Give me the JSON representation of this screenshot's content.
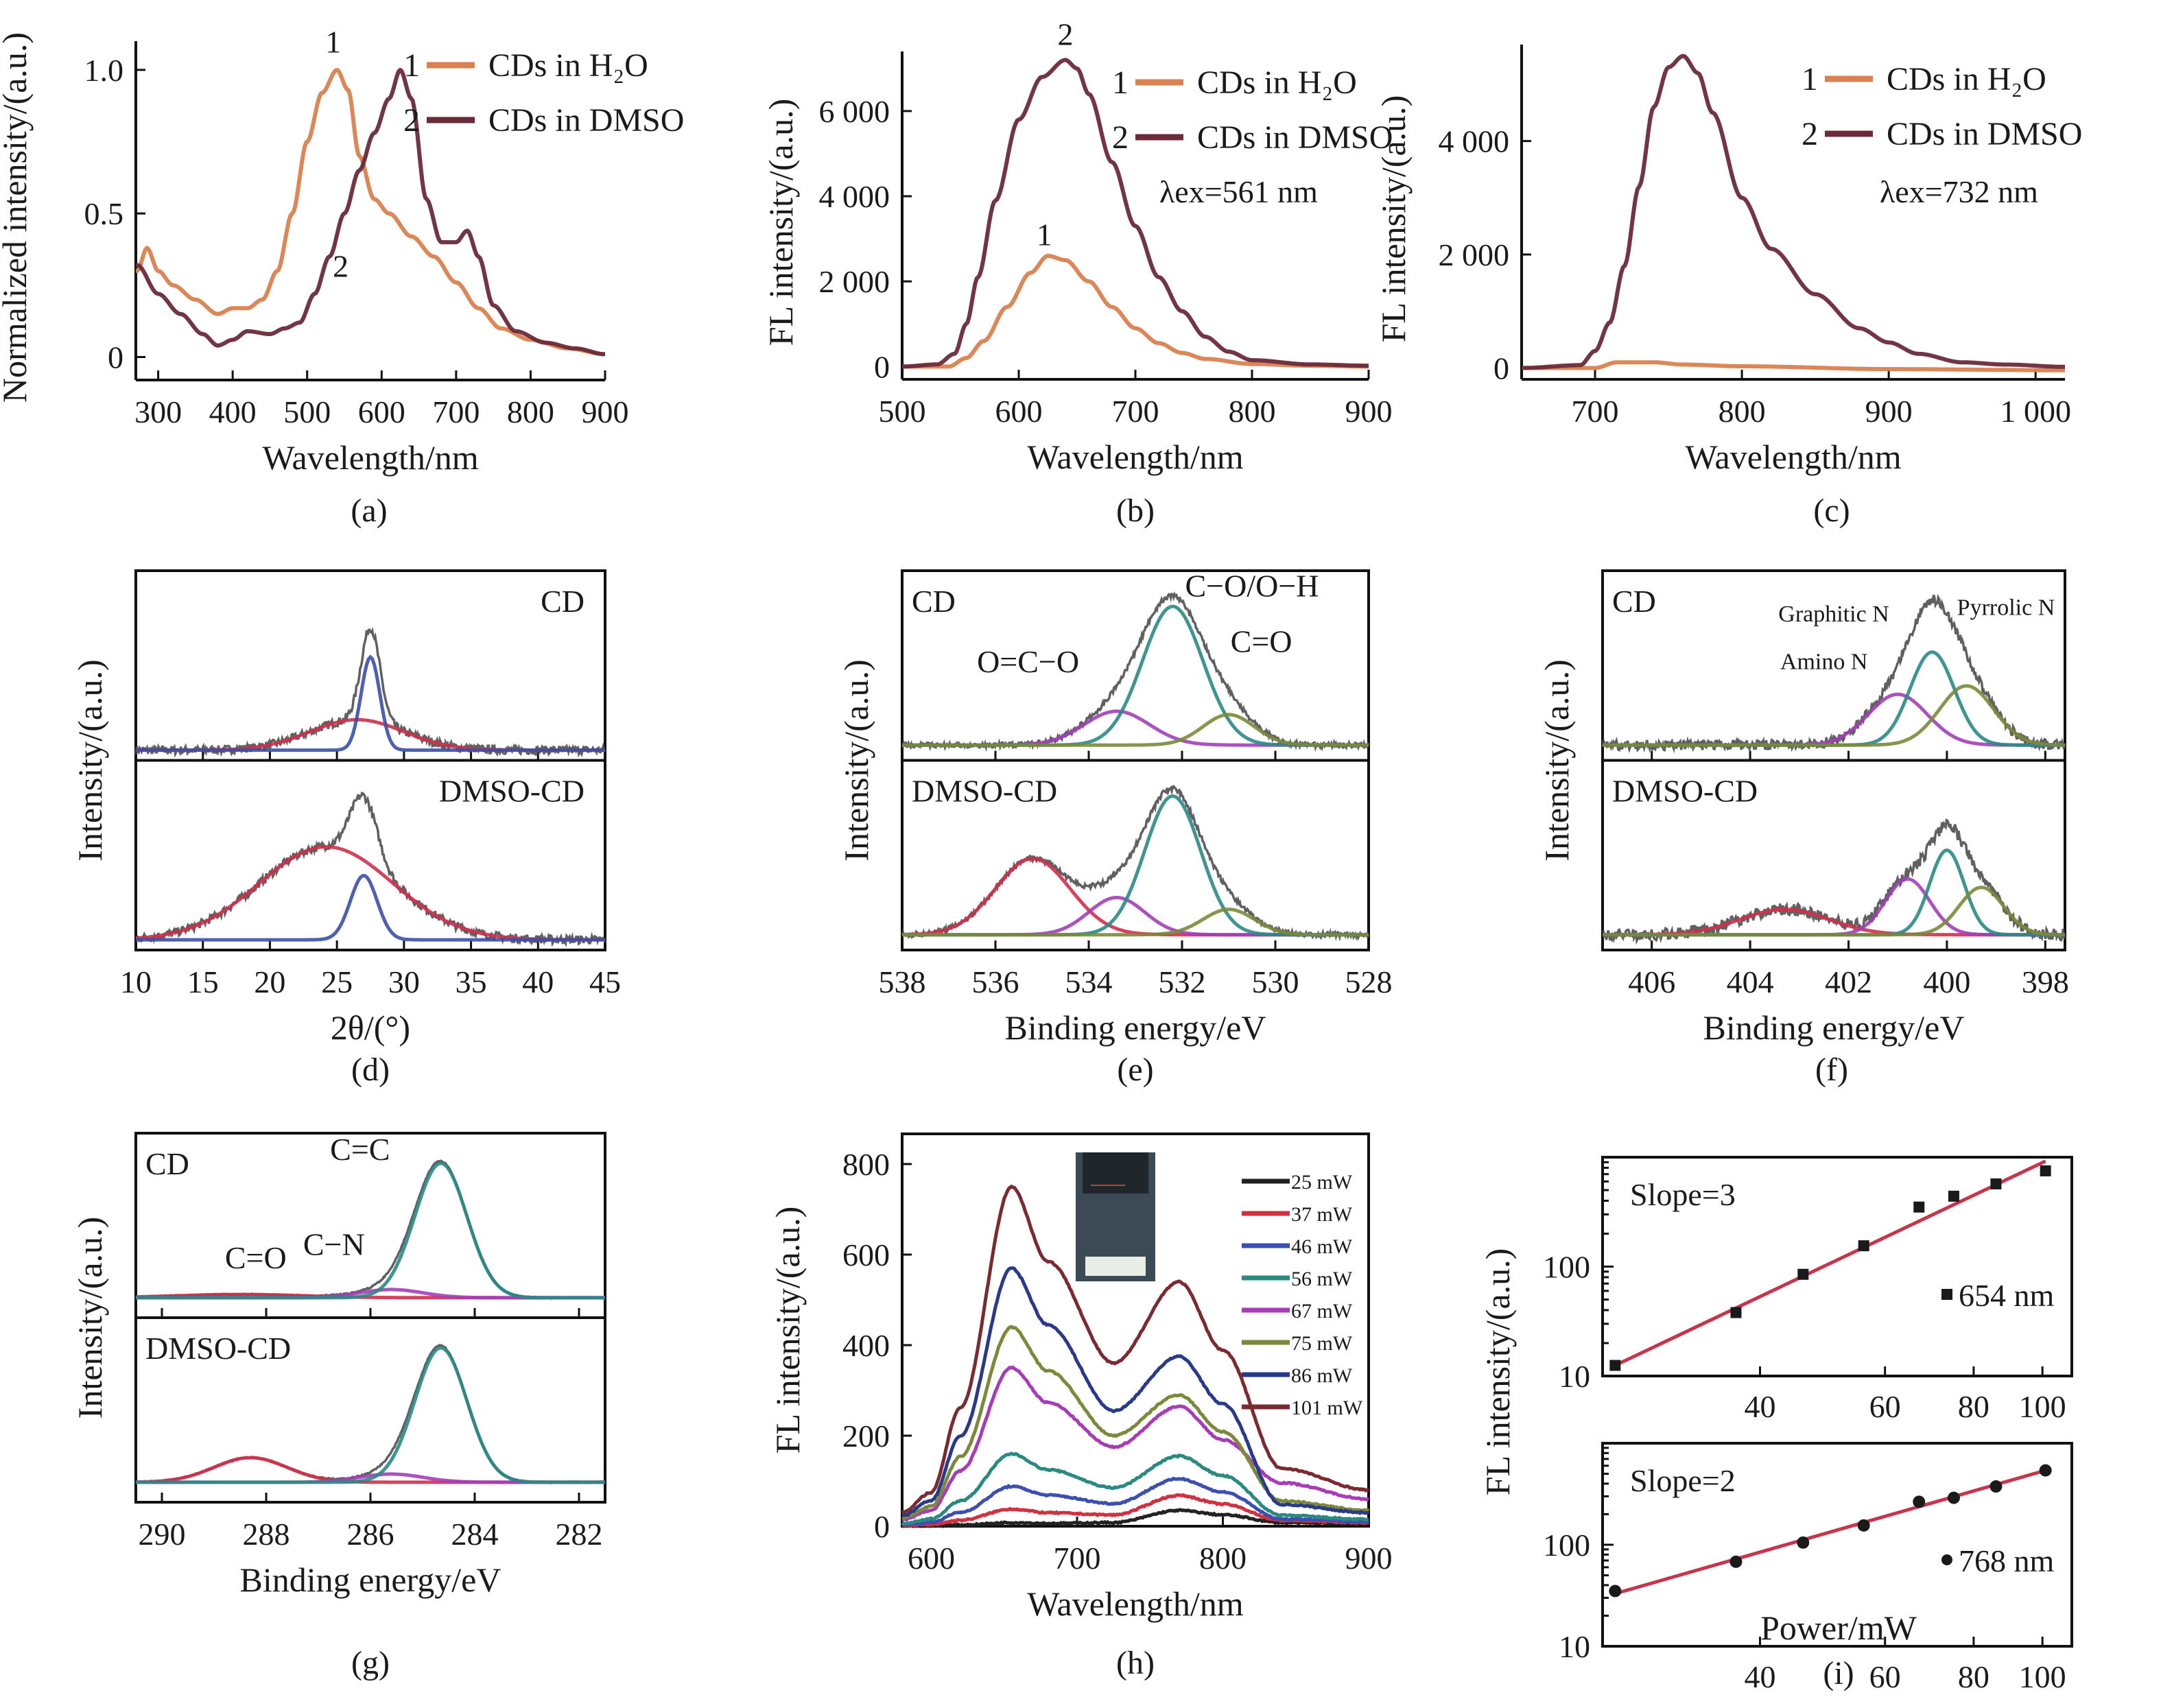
{
  "figure": {
    "panel_labels": [
      "(a)",
      "(b)",
      "(c)",
      "(d)",
      "(e)",
      "(f)",
      "(g)",
      "(h)",
      "(i)"
    ]
  },
  "colors": {
    "h2o": "#d9814f",
    "dmso": "#6b2a3a",
    "raw": "#1a1a1a",
    "fit_red": "#d0304a",
    "fit_blue": "#3a4fa8",
    "fit_teal": "#2a8a86",
    "fit_purple": "#a33fb8",
    "fit_olive": "#7a8a3a"
  },
  "chart_data": [
    {
      "id": "a",
      "type": "line",
      "xlabel": "Wavelength/nm",
      "ylabel": "Normalized intensity/(a.u.)",
      "xlim": [
        270,
        900
      ],
      "ylim": [
        -0.08,
        1.1
      ],
      "xticks": [
        300,
        400,
        500,
        600,
        700,
        800,
        900
      ],
      "yticks": [
        0,
        0.5,
        1.0
      ],
      "ytick_labels": [
        "0",
        "0.5",
        "1.0"
      ],
      "legend": [
        {
          "num": "1",
          "label": "CDs in H₂O"
        },
        {
          "num": "2",
          "label": "CDs in DMSO"
        }
      ],
      "annotations": [
        {
          "text": "1",
          "x": 535,
          "y": 1.06
        },
        {
          "text": "2",
          "x": 545,
          "y": 0.28
        }
      ],
      "series": [
        {
          "name": "CDs in H2O",
          "color_key": "h2o",
          "x": [
            272,
            285,
            300,
            320,
            350,
            380,
            400,
            420,
            440,
            460,
            480,
            500,
            520,
            540,
            555,
            570,
            590,
            610,
            640,
            670,
            700,
            730,
            760,
            800,
            850,
            900
          ],
          "y": [
            0.3,
            0.38,
            0.3,
            0.25,
            0.2,
            0.15,
            0.17,
            0.17,
            0.2,
            0.3,
            0.5,
            0.75,
            0.92,
            1.0,
            0.93,
            0.7,
            0.55,
            0.5,
            0.42,
            0.35,
            0.26,
            0.17,
            0.1,
            0.06,
            0.03,
            0.01
          ]
        },
        {
          "name": "CDs in DMSO",
          "color_key": "dmso",
          "x": [
            272,
            300,
            330,
            360,
            380,
            400,
            420,
            450,
            470,
            490,
            510,
            530,
            550,
            570,
            590,
            610,
            625,
            640,
            660,
            680,
            700,
            715,
            730,
            750,
            780,
            820,
            860,
            900
          ],
          "y": [
            0.32,
            0.22,
            0.15,
            0.08,
            0.04,
            0.06,
            0.09,
            0.08,
            0.1,
            0.12,
            0.22,
            0.35,
            0.5,
            0.65,
            0.78,
            0.9,
            1.0,
            0.9,
            0.55,
            0.4,
            0.4,
            0.44,
            0.35,
            0.18,
            0.09,
            0.05,
            0.03,
            0.01
          ]
        }
      ]
    },
    {
      "id": "b",
      "type": "line",
      "xlabel": "Wavelength/nm",
      "ylabel": "FL intensity/(a.u.)",
      "xlim": [
        500,
        900
      ],
      "ylim": [
        -300,
        7400
      ],
      "xticks": [
        500,
        600,
        700,
        800,
        900
      ],
      "yticks": [
        0,
        2000,
        4000,
        6000
      ],
      "ytick_labels": [
        "0",
        "2 000",
        "4 000",
        "6 000"
      ],
      "legend": [
        {
          "num": "1",
          "label": "CDs in H₂O"
        },
        {
          "num": "2",
          "label": "CDs in DMSO"
        }
      ],
      "text_note": "λex=561 nm",
      "annotations": [
        {
          "text": "2",
          "x": 640,
          "y": 7550
        },
        {
          "text": "1",
          "x": 622,
          "y": 2850
        }
      ],
      "series": [
        {
          "name": "CDs in H2O",
          "color_key": "h2o",
          "x": [
            500,
            540,
            555,
            570,
            590,
            610,
            625,
            640,
            660,
            680,
            700,
            720,
            740,
            760,
            800,
            850,
            900
          ],
          "y": [
            0,
            0,
            200,
            600,
            1400,
            2200,
            2600,
            2500,
            2000,
            1400,
            900,
            550,
            320,
            180,
            60,
            20,
            0
          ]
        },
        {
          "name": "CDs in DMSO",
          "color_key": "dmso",
          "x": [
            500,
            530,
            545,
            555,
            565,
            580,
            600,
            620,
            640,
            650,
            660,
            680,
            700,
            720,
            740,
            760,
            780,
            800,
            850,
            900
          ],
          "y": [
            0,
            50,
            300,
            1000,
            2100,
            3900,
            5800,
            6800,
            7200,
            7000,
            6400,
            4800,
            3300,
            2100,
            1300,
            700,
            350,
            150,
            50,
            20
          ]
        }
      ]
    },
    {
      "id": "c",
      "type": "line",
      "xlabel": "Wavelength/nm",
      "ylabel": "FL intensity/(a.u.)",
      "xlim": [
        650,
        1020
      ],
      "ylim": [
        -200,
        5700
      ],
      "xticks": [
        700,
        800,
        900,
        1000
      ],
      "xtick_labels": [
        "700",
        "800",
        "900",
        "1 000"
      ],
      "yticks": [
        0,
        2000,
        4000
      ],
      "ytick_labels": [
        "0",
        "2 000",
        "4 000"
      ],
      "legend": [
        {
          "num": "1",
          "label": "CDs in H₂O"
        },
        {
          "num": "2",
          "label": "CDs in DMSO"
        }
      ],
      "text_note": "λex=732 nm",
      "series": [
        {
          "name": "CDs in H2O",
          "color_key": "h2o",
          "x": [
            650,
            700,
            715,
            740,
            760,
            800,
            900,
            1020
          ],
          "y": [
            0,
            0,
            100,
            100,
            60,
            30,
            -20,
            -40
          ]
        },
        {
          "name": "CDs in DMSO",
          "color_key": "dmso",
          "x": [
            650,
            690,
            700,
            710,
            720,
            730,
            740,
            750,
            760,
            770,
            780,
            800,
            820,
            850,
            880,
            900,
            920,
            950,
            980,
            1020
          ],
          "y": [
            0,
            50,
            300,
            800,
            1800,
            3200,
            4600,
            5300,
            5500,
            5200,
            4500,
            3000,
            2100,
            1300,
            700,
            450,
            250,
            100,
            60,
            20
          ]
        }
      ]
    },
    {
      "id": "d",
      "type": "line",
      "stacked_panels": true,
      "xlabel": "2θ/(°)",
      "ylabel": "Intensity/(a.u.)",
      "xlim": [
        10,
        45
      ],
      "xticks": [
        10,
        15,
        20,
        25,
        30,
        35,
        40,
        45
      ],
      "panels": [
        {
          "label": "CD",
          "peaks": [
            {
              "name": "broad fit",
              "color_key": "fit_red",
              "center": 26.5,
              "width": 3.5,
              "height": 0.18
            },
            {
              "name": "sharp fit",
              "color_key": "fit_blue",
              "center": 27.5,
              "width": 0.7,
              "height": 0.55
            }
          ],
          "noise": 0.025,
          "baseline": 0.02
        },
        {
          "label": "DMSO-CD",
          "peaks": [
            {
              "name": "broad fit",
              "color_key": "fit_red",
              "center": 24.2,
              "width": 5.0,
              "height": 0.55
            },
            {
              "name": "sharp fit",
              "color_key": "fit_blue",
              "center": 27.0,
              "width": 1.0,
              "height": 0.38
            }
          ],
          "noise": 0.025,
          "baseline": 0.02
        }
      ]
    },
    {
      "id": "e",
      "type": "line",
      "stacked_panels": true,
      "reversed_x": true,
      "xlabel": "Binding energy/eV",
      "ylabel": "Intensity/(a.u.)",
      "xlim": [
        538,
        528
      ],
      "xticks": [
        538,
        536,
        534,
        532,
        530,
        528
      ],
      "panels": [
        {
          "label": "CD",
          "peak_labels": [
            {
              "text": "O=C−O",
              "x": 535.3,
              "y": 0.48
            },
            {
              "text": "C−O/O−H",
              "x": 530.5,
              "y": 0.93
            },
            {
              "text": "C=O",
              "x": 530.3,
              "y": 0.6
            }
          ],
          "peaks": [
            {
              "name": "O=C−O",
              "color_key": "fit_purple",
              "center": 533.4,
              "width": 0.7,
              "height": 0.2
            },
            {
              "name": "C−O/O−H",
              "color_key": "fit_teal",
              "center": 532.2,
              "width": 0.65,
              "height": 0.82
            },
            {
              "name": "C=O",
              "color_key": "fit_olive",
              "center": 531.0,
              "width": 0.55,
              "height": 0.18
            }
          ],
          "noise": 0.015,
          "baseline": 0.05
        },
        {
          "label": "DMSO-CD",
          "peaks": [
            {
              "name": "S=O / O (DMSO)",
              "color_key": "fit_red",
              "center": 535.2,
              "width": 0.8,
              "height": 0.45
            },
            {
              "name": "O=C−O",
              "color_key": "fit_purple",
              "center": 533.4,
              "width": 0.6,
              "height": 0.22
            },
            {
              "name": "C−O/O−H",
              "color_key": "fit_teal",
              "center": 532.2,
              "width": 0.6,
              "height": 0.82
            },
            {
              "name": "C=O",
              "color_key": "fit_olive",
              "center": 531.0,
              "width": 0.55,
              "height": 0.15
            }
          ],
          "noise": 0.015,
          "baseline": 0.05
        }
      ]
    },
    {
      "id": "f",
      "type": "line",
      "stacked_panels": true,
      "reversed_x": true,
      "xlabel": "Binding energy/eV",
      "ylabel": "Intensity/(a.u.)",
      "xlim": [
        407,
        397.6
      ],
      "xticks": [
        406,
        404,
        402,
        400,
        398
      ],
      "panels": [
        {
          "label": "CD",
          "peak_labels": [
            {
              "text": "Graphitic N",
              "x": 402.3,
              "y": 0.78
            },
            {
              "text": "Pyrrolic N",
              "x": 398.8,
              "y": 0.82
            },
            {
              "text": "Amino N",
              "x": 402.5,
              "y": 0.5
            }
          ],
          "peaks": [
            {
              "name": "Amino N",
              "color_key": "fit_purple",
              "center": 401.0,
              "width": 0.6,
              "height": 0.3
            },
            {
              "name": "Graphitic N",
              "color_key": "fit_teal",
              "center": 400.3,
              "width": 0.45,
              "height": 0.55
            },
            {
              "name": "Pyrrolic N",
              "color_key": "fit_olive",
              "center": 399.6,
              "width": 0.55,
              "height": 0.35
            }
          ],
          "noise": 0.03,
          "baseline": 0.05
        },
        {
          "label": "DMSO-CD",
          "peaks": [
            {
              "name": "Oxidized N",
              "color_key": "fit_red",
              "center": 403.3,
              "width": 0.9,
              "height": 0.15
            },
            {
              "name": "Amino N",
              "color_key": "fit_purple",
              "center": 400.8,
              "width": 0.45,
              "height": 0.33
            },
            {
              "name": "Graphitic N",
              "color_key": "fit_teal",
              "center": 400.0,
              "width": 0.35,
              "height": 0.5
            },
            {
              "name": "Pyrrolic N",
              "color_key": "fit_olive",
              "center": 399.3,
              "width": 0.45,
              "height": 0.28
            }
          ],
          "noise": 0.035,
          "baseline": 0.05
        }
      ]
    },
    {
      "id": "g",
      "type": "line",
      "stacked_panels": true,
      "reversed_x": true,
      "xlabel": "Binding energy/eV",
      "ylabel": "Intensity/(a.u.)",
      "xlim": [
        290.5,
        281.5
      ],
      "xticks": [
        290,
        288,
        286,
        284,
        282
      ],
      "panels": [
        {
          "label": "CD",
          "peak_labels": [
            {
              "text": "C=C",
              "x": 286.2,
              "y": 0.92
            },
            {
              "text": "C−N",
              "x": 286.7,
              "y": 0.34
            },
            {
              "text": "C=O",
              "x": 288.2,
              "y": 0.26
            }
          ],
          "peaks": [
            {
              "name": "C=O",
              "color_key": "fit_red",
              "center": 288.5,
              "width": 1.2,
              "height": 0.02
            },
            {
              "name": "C−N",
              "color_key": "fit_purple",
              "center": 285.6,
              "width": 0.6,
              "height": 0.05
            },
            {
              "name": "C=C",
              "color_key": "fit_teal",
              "center": 284.65,
              "width": 0.5,
              "height": 0.82
            }
          ],
          "noise": 0.004,
          "baseline": 0.08
        },
        {
          "label": "DMSO-CD",
          "peaks": [
            {
              "name": "C=O",
              "color_key": "fit_red",
              "center": 288.3,
              "width": 0.7,
              "height": 0.15
            },
            {
              "name": "C−N",
              "color_key": "fit_purple",
              "center": 285.6,
              "width": 0.6,
              "height": 0.05
            },
            {
              "name": "C=C",
              "color_key": "fit_teal",
              "center": 284.65,
              "width": 0.5,
              "height": 0.82
            }
          ],
          "noise": 0.004,
          "baseline": 0.08
        }
      ]
    },
    {
      "id": "h",
      "type": "line",
      "xlabel": "Wavelength/nm",
      "ylabel": "FL intensity/(a.u.)",
      "xlim": [
        580,
        900
      ],
      "ylim": [
        0,
        800
      ],
      "xticks": [
        600,
        700,
        800,
        900
      ],
      "yticks": [
        0,
        200,
        400,
        600,
        800
      ],
      "inset": "cuvette photo",
      "series": [
        {
          "name": "25 mW",
          "color": "#222222",
          "peak1": 8,
          "valley": 8,
          "peak2": 35,
          "tail": 5
        },
        {
          "name": "37 mW",
          "color": "#d03040",
          "peak1": 38,
          "valley": 25,
          "peak2": 68,
          "tail": 8
        },
        {
          "name": "46 mW",
          "color": "#3a4fb0",
          "peak1": 88,
          "valley": 50,
          "peak2": 105,
          "tail": 10
        },
        {
          "name": "56 mW",
          "color": "#2a8a80",
          "peak1": 160,
          "valley": 85,
          "peak2": 155,
          "tail": 15
        },
        {
          "name": "67 mW",
          "color": "#a83cb8",
          "peak1": 350,
          "valley": 175,
          "peak2": 265,
          "tail": 60
        },
        {
          "name": "75 mW",
          "color": "#7a8a3a",
          "peak1": 440,
          "valley": 200,
          "peak2": 290,
          "tail": 35
        },
        {
          "name": "86 mW",
          "color": "#2a3a8a",
          "peak1": 570,
          "valley": 255,
          "peak2": 375,
          "tail": 30
        },
        {
          "name": "101 mW",
          "color": "#7a2a30",
          "peak1": 750,
          "valley": 360,
          "peak2": 540,
          "tail": 80
        }
      ],
      "peak1_x": 655,
      "valley_x": 725,
      "peak2_x": 770
    },
    {
      "id": "i",
      "type": "scatter",
      "stacked_panels": true,
      "xlabel": "Power/mW",
      "ylabel": "FL intensity/(a.u.)",
      "xscale": "log",
      "yscale": "log",
      "xlim": [
        24,
        110
      ],
      "xticks": [
        40,
        60,
        80,
        100
      ],
      "ylim": [
        10,
        1000
      ],
      "yticks": [
        10,
        100
      ],
      "ytick_labels": [
        "10",
        "100"
      ],
      "panels": [
        {
          "slope_label": "Slope=3",
          "legend": "654 nm",
          "marker": "square",
          "slope": 3,
          "x": [
            25,
            37,
            46,
            56,
            67,
            75,
            86,
            101
          ],
          "y": [
            12.5,
            38,
            85,
            155,
            350,
            440,
            570,
            750
          ],
          "fit": {
            "x": [
              25,
              101
            ],
            "y": [
              12.5,
              920
            ]
          }
        },
        {
          "slope_label": "Slope=2",
          "legend": "768 nm",
          "marker": "circle",
          "slope": 2,
          "x": [
            25,
            37,
            46,
            56,
            67,
            75,
            86,
            101
          ],
          "y": [
            35,
            68,
            105,
            155,
            265,
            290,
            375,
            540
          ],
          "fit": {
            "x": [
              25,
              101
            ],
            "y": [
              33,
              540
            ]
          }
        }
      ]
    }
  ]
}
